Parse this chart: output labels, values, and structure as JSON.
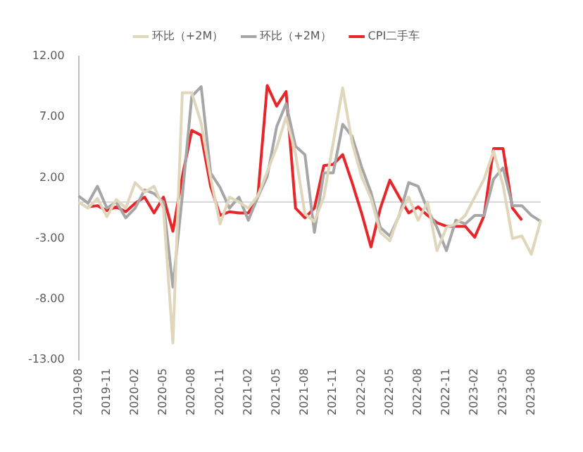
{
  "chart_data": {
    "type": "line",
    "categories": [
      "2019-08",
      null,
      null,
      "2019-11",
      null,
      null,
      "2020-02",
      null,
      null,
      "2020-05",
      null,
      null,
      "2020-08",
      null,
      null,
      "2020-11",
      null,
      null,
      "2021-02",
      null,
      null,
      "2021-05",
      null,
      null,
      "2021-08",
      null,
      null,
      "2021-11",
      null,
      null,
      "2022-02",
      null,
      null,
      "2022-05",
      null,
      null,
      "2022-08",
      null,
      null,
      "2022-11",
      null,
      null,
      "2023-02",
      null,
      null,
      "2023-05",
      null,
      null,
      "2023-08",
      null
    ],
    "series": [
      {
        "name": "环比（+2M）",
        "color": "#e0d6bc",
        "values": [
          0,
          -0.5,
          0.3,
          -1.2,
          0.2,
          -0.5,
          1.6,
          0.8,
          1.3,
          -0.5,
          -11.6,
          9.0,
          9.0,
          6.5,
          2.0,
          -1.8,
          0.4,
          0,
          -0.5,
          0.5,
          2.5,
          4.5,
          7.0,
          4.0,
          -1.0,
          -1.6,
          0.4,
          4.9,
          9.4,
          4.9,
          2.1,
          0.3,
          -2.5,
          -3.2,
          -1.0,
          0.4,
          -1.5,
          0,
          -4.0,
          -2.1,
          -1.8,
          -1.1,
          0.4,
          1.9,
          4.2,
          1.4,
          -3.0,
          -2.8,
          -4.3,
          -1.5
        ]
      },
      {
        "name": "环比（+2M）",
        "color": "#a6a6a6",
        "values": [
          0.5,
          -0.1,
          1.3,
          -0.5,
          0,
          -1.3,
          -0.5,
          1.0,
          0.7,
          0,
          -7.0,
          0.5,
          8.7,
          9.5,
          2.4,
          1.2,
          -0.5,
          0.4,
          -1.5,
          0.4,
          2.1,
          6.2,
          8.1,
          4.6,
          3.9,
          -2.5,
          2.4,
          2.4,
          6.4,
          5.4,
          2.9,
          0.8,
          -2.1,
          -2.8,
          -1.1,
          1.6,
          1.3,
          -0.6,
          -2.1,
          -4.0,
          -1.5,
          -1.8,
          -1.1,
          -1.1,
          1.9,
          2.8,
          -0.3,
          -0.3,
          -1.1,
          -1.6
        ]
      },
      {
        "name": "CPI二手车",
        "color": "#e8262a",
        "values": [
          null,
          -0.4,
          -0.3,
          -0.7,
          -0.4,
          -0.8,
          -0.1,
          0.4,
          -0.9,
          0.4,
          -2.4,
          2.1,
          5.9,
          5.5,
          1.3,
          -1.1,
          -0.8,
          -0.9,
          -0.9,
          0.4,
          9.6,
          7.9,
          9.1,
          -0.5,
          -1.3,
          -0.5,
          3.0,
          3.1,
          3.9,
          1.6,
          -0.9,
          -3.7,
          -0.5,
          1.8,
          0.4,
          -0.9,
          -0.4,
          -1.1,
          -1.7,
          -2.0,
          -2.0,
          -2.0,
          -2.9,
          -1.1,
          4.4,
          4.4,
          -0.5,
          -1.5,
          null,
          null
        ]
      }
    ],
    "ylim": [
      -13,
      12
    ],
    "yticks": [
      {
        "value": 12,
        "label": "12.00"
      },
      {
        "value": 7,
        "label": "7.00"
      },
      {
        "value": 2,
        "label": "2.00"
      },
      {
        "value": -3,
        "label": "-3.00"
      },
      {
        "value": -8,
        "label": "-8.00"
      },
      {
        "value": -13,
        "label": "-13.00"
      }
    ],
    "ref_lines": [
      {
        "axis": "y",
        "value": 0,
        "color": "#d9d9d9"
      }
    ],
    "grid": false,
    "legend": "top",
    "marker": "none",
    "line_style": "solid"
  }
}
